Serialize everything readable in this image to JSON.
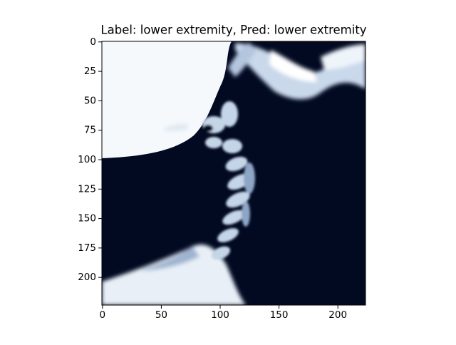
{
  "chart_data": {
    "type": "image",
    "title": "Label: lower extremity, Pred: lower extremity",
    "xlim": [
      -0.5,
      223.5
    ],
    "ylim": [
      223.5,
      -0.5
    ],
    "xticks": [
      0,
      50,
      100,
      150,
      200
    ],
    "yticks": [
      0,
      25,
      50,
      75,
      100,
      125,
      150,
      175,
      200
    ]
  }
}
